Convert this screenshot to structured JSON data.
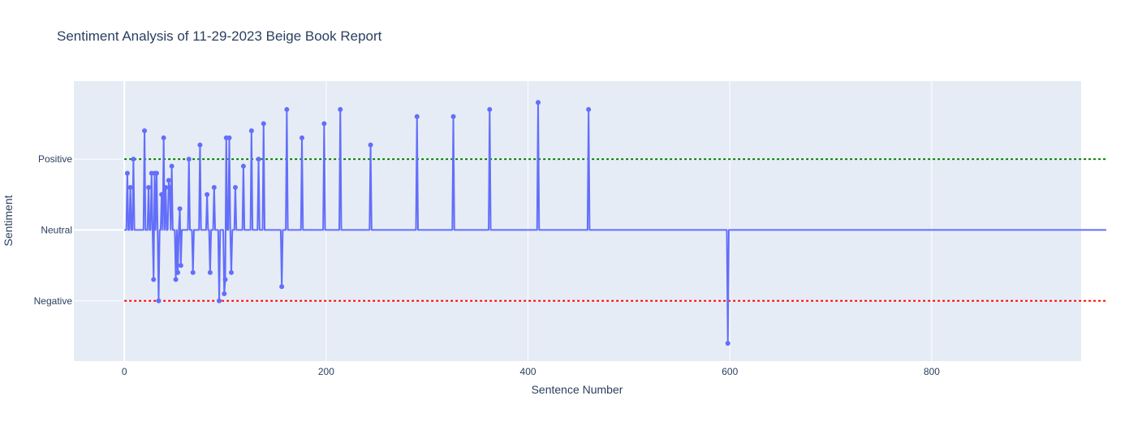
{
  "chart_data": {
    "type": "line",
    "title": "Sentiment Analysis of 11-29-2023 Beige Book Report",
    "xlabel": "Sentence Number",
    "ylabel": "Sentiment",
    "x_ticks": [
      0,
      200,
      400,
      600,
      800
    ],
    "y_tick_values": [
      -1,
      0,
      1
    ],
    "y_tick_labels": [
      "Negative",
      "Neutral",
      "Positive"
    ],
    "xlim": [
      -50,
      948
    ],
    "ylim": [
      -1.85,
      2.1
    ],
    "grid": true,
    "legend": "none",
    "colors": {
      "series": "#636efa",
      "plot_bg": "#e5ecf6",
      "grid": "#ffffff",
      "text": "#2a3f5f",
      "positive_line": "#008000",
      "negative_line": "#ff0000"
    },
    "reference_lines": [
      {
        "y": 1,
        "color": "#008000",
        "style": "dotted"
      },
      {
        "y": -1,
        "color": "#ff0000",
        "style": "dotted"
      }
    ],
    "series": [
      {
        "x_start": 0,
        "x_step": 1,
        "values": [
          0.0,
          0.0,
          0.0,
          0.8,
          0.0,
          0.0,
          0.6,
          0.0,
          0.0,
          1.0,
          0.0,
          0.0,
          0.0,
          0.0,
          0.0,
          0.0,
          0.0,
          0.0,
          0.0,
          0.0,
          1.4,
          0.0,
          0.0,
          0.0,
          0.6,
          0.0,
          0.0,
          0.8,
          0.0,
          -0.7,
          0.8,
          0.0,
          0.8,
          0.0,
          -1.0,
          0.0,
          0.0,
          0.5,
          0.0,
          1.3,
          0.0,
          0.6,
          0.0,
          0.0,
          0.7,
          0.6,
          0.0,
          0.9,
          0.0,
          0.0,
          0.0,
          -0.7,
          0.0,
          -0.6,
          0.0,
          0.3,
          -0.5,
          0.0,
          0.0,
          0.0,
          0.0,
          0.0,
          0.0,
          0.0,
          1.0,
          0.0,
          0.0,
          0.0,
          -0.6,
          0.0,
          0.0,
          0.0,
          0.0,
          0.0,
          0.0,
          1.2,
          0.0,
          0.0,
          0.0,
          0.0,
          0.0,
          0.0,
          0.5,
          0.0,
          0.0,
          -0.6,
          0.0,
          0.0,
          0.0,
          0.6,
          0.0,
          0.0,
          0.0,
          0.0,
          -1.0,
          0.0,
          0.0,
          0.0,
          0.0,
          -0.9,
          -0.7,
          1.3,
          0.0,
          0.0,
          1.3,
          0.0,
          -0.6,
          0.0,
          0.0,
          0.0,
          0.6,
          0.0,
          0.0,
          0.0,
          0.0,
          0.0,
          0.0,
          0.0,
          0.9,
          0.0,
          0.0,
          0.0,
          0.0,
          0.0,
          0.0,
          0.0,
          1.4,
          0.0,
          0.0,
          0.0,
          0.0,
          0.0,
          0.0,
          1.0,
          0.0,
          0.0,
          0.0,
          0.0,
          1.5,
          0.0,
          0.0,
          0.0,
          0.0,
          0.0,
          0.0,
          0.0,
          0.0,
          0.0,
          0.0,
          0.0,
          0.0,
          0.0,
          0.0,
          0.0,
          0.0,
          0.0,
          -0.8,
          0.0,
          0.0,
          0.0,
          0.0,
          1.7,
          0.0,
          0.0,
          0.0,
          0.0,
          0.0,
          0.0,
          0.0,
          0.0,
          0.0,
          0.0,
          0.0,
          0.0,
          0.0,
          0.0,
          1.3,
          0.0,
          0.0,
          0.0,
          0.0,
          0.0,
          0.0,
          0.0,
          0.0,
          0.0,
          0.0,
          0.0,
          0.0,
          0.0,
          0.0,
          0.0,
          0.0,
          0.0,
          0.0,
          0.0,
          0.0,
          0.0,
          1.5,
          0.0,
          0.0,
          0.0,
          0.0,
          0.0,
          0.0,
          0.0,
          0.0,
          0.0,
          0.0,
          0.0,
          0.0,
          0.0,
          0.0,
          0.0,
          1.7,
          0.0,
          0.0,
          0.0,
          0.0,
          0.0,
          0.0,
          0.0,
          0.0,
          0.0,
          0.0,
          0.0,
          0.0,
          0.0,
          0.0,
          0.0,
          0.0,
          0.0,
          0.0,
          0.0,
          0.0,
          0.0,
          0.0,
          0.0,
          0.0,
          0.0,
          0.0,
          0.0,
          0.0,
          0.0,
          1.2,
          0.0,
          0.0,
          0.0,
          0.0,
          0.0,
          0.0,
          0.0,
          0.0,
          0.0,
          0.0,
          0.0,
          0.0,
          0.0,
          0.0,
          0.0,
          0.0,
          0.0,
          0.0,
          0.0,
          0.0,
          0.0,
          0.0,
          0.0,
          0.0,
          0.0,
          0.0,
          0.0,
          0.0,
          0.0,
          0.0,
          0.0,
          0.0,
          0.0,
          0.0,
          0.0,
          0.0,
          0.0,
          0.0,
          0.0,
          0.0,
          0.0,
          0.0,
          0.0,
          0.0,
          0.0,
          1.6,
          0.0,
          0.0,
          0.0,
          0.0,
          0.0,
          0.0,
          0.0,
          0.0,
          0.0,
          0.0,
          0.0,
          0.0,
          0.0,
          0.0,
          0.0,
          0.0,
          0.0,
          0.0,
          0.0,
          0.0,
          0.0,
          0.0,
          0.0,
          0.0,
          0.0,
          0.0,
          0.0,
          0.0,
          0.0,
          0.0,
          0.0,
          0.0,
          0.0,
          0.0,
          0.0,
          1.6,
          0.0,
          0.0,
          0.0,
          0.0,
          0.0,
          0.0,
          0.0,
          0.0,
          0.0,
          0.0,
          0.0,
          0.0,
          0.0,
          0.0,
          0.0,
          0.0,
          0.0,
          0.0,
          0.0,
          0.0,
          0.0,
          0.0,
          0.0,
          0.0,
          0.0,
          0.0,
          0.0,
          0.0,
          0.0,
          0.0,
          0.0,
          0.0,
          0.0,
          0.0,
          0.0,
          1.7,
          0.0,
          0.0,
          0.0,
          0.0,
          0.0,
          0.0,
          0.0,
          0.0,
          0.0,
          0.0,
          0.0,
          0.0,
          0.0,
          0.0,
          0.0,
          0.0,
          0.0,
          0.0,
          0.0,
          0.0,
          0.0,
          0.0,
          0.0,
          0.0,
          0.0,
          0.0,
          0.0,
          0.0,
          0.0,
          0.0,
          0.0,
          0.0,
          0.0,
          0.0,
          0.0,
          0.0,
          0.0,
          0.0,
          0.0,
          0.0,
          0.0,
          0.0,
          0.0,
          0.0,
          0.0,
          0.0,
          0.0,
          1.8,
          0.0,
          0.0,
          0.0,
          0.0,
          0.0,
          0.0,
          0.0,
          0.0,
          0.0,
          0.0,
          0.0,
          0.0,
          0.0,
          0.0,
          0.0,
          0.0,
          0.0,
          0.0,
          0.0,
          0.0,
          0.0,
          0.0,
          0.0,
          0.0,
          0.0,
          0.0,
          0.0,
          0.0,
          0.0,
          0.0,
          0.0,
          0.0,
          0.0,
          0.0,
          0.0,
          0.0,
          0.0,
          0.0,
          0.0,
          0.0,
          0.0,
          0.0,
          0.0,
          0.0,
          0.0,
          0.0,
          0.0,
          0.0,
          0.0,
          1.7,
          0.0,
          0.0,
          0.0,
          0.0,
          0.0,
          0.0,
          0.0,
          0.0,
          0.0,
          0.0,
          0.0,
          0.0,
          0.0,
          0.0,
          0.0,
          0.0,
          0.0,
          0.0,
          0.0,
          0.0,
          0.0,
          0.0,
          0.0,
          0.0,
          0.0,
          0.0,
          0.0,
          0.0,
          0.0,
          0.0,
          0.0,
          0.0,
          0.0,
          0.0,
          0.0,
          0.0,
          0.0,
          0.0,
          0.0,
          0.0,
          0.0,
          0.0,
          0.0,
          0.0,
          0.0,
          0.0,
          0.0,
          0.0,
          0.0,
          0.0,
          0.0,
          0.0,
          0.0,
          0.0,
          0.0,
          0.0,
          0.0,
          0.0,
          0.0,
          0.0,
          0.0,
          0.0,
          0.0,
          0.0,
          0.0,
          0.0,
          0.0,
          0.0,
          0.0,
          0.0,
          0.0,
          0.0,
          0.0,
          0.0,
          0.0,
          0.0,
          0.0,
          0.0,
          0.0,
          0.0,
          0.0,
          0.0,
          0.0,
          0.0,
          0.0,
          0.0,
          0.0,
          0.0,
          0.0,
          0.0,
          0.0,
          0.0,
          0.0,
          0.0,
          0.0,
          0.0,
          0.0,
          0.0,
          0.0,
          0.0,
          0.0,
          0.0,
          0.0,
          0.0,
          0.0,
          0.0,
          0.0,
          0.0,
          0.0,
          0.0,
          0.0,
          0.0,
          0.0,
          0.0,
          0.0,
          0.0,
          0.0,
          0.0,
          0.0,
          0.0,
          0.0,
          0.0,
          0.0,
          0.0,
          0.0,
          0.0,
          0.0,
          0.0,
          0.0,
          0.0,
          0.0,
          0.0,
          0.0,
          0.0,
          0.0,
          0.0,
          0.0,
          -1.6,
          0.0,
          0.0,
          0.0,
          0.0,
          0.0,
          0.0,
          0.0,
          0.0,
          0.0,
          0.0,
          0.0,
          0.0,
          0.0,
          0.0,
          0.0,
          0.0,
          0.0,
          0.0,
          0.0,
          0.0,
          0.0,
          0.0,
          0.0,
          0.0,
          0.0,
          0.0,
          0.0,
          0.0,
          0.0,
          0.0,
          0.0,
          0.0,
          0.0,
          0.0,
          0.0,
          0.0,
          0.0,
          0.0,
          0.0,
          0.0,
          0.0,
          0.0,
          0.0,
          0.0,
          0.0,
          0.0,
          0.0,
          0.0,
          0.0,
          0.0,
          0.0,
          0.0,
          0.0,
          0.0,
          0.0,
          0.0,
          0.0,
          0.0,
          0.0,
          0.0,
          0.0,
          0.0,
          0.0,
          0.0,
          0.0,
          0.0,
          0.0,
          0.0,
          0.0,
          0.0,
          0.0,
          0.0,
          0.0,
          0.0,
          0.0,
          0.0,
          0.0,
          0.0,
          0.0,
          0.0,
          0.0,
          0.0,
          0.0,
          0.0,
          0.0,
          0.0,
          0.0,
          0.0,
          0.0,
          0.0,
          0.0,
          0.0,
          0.0,
          0.0,
          0.0,
          0.0,
          0.0,
          0.0,
          0.0,
          0.0,
          0.0,
          0.0,
          0.0,
          0.0,
          0.0,
          0.0,
          0.0,
          0.0,
          0.0,
          0.0,
          0.0,
          0.0,
          0.0,
          0.0,
          0.0,
          0.0,
          0.0,
          0.0,
          0.0,
          0.0,
          0.0,
          0.0,
          0.0,
          0.0,
          0.0,
          0.0,
          0.0,
          0.0,
          0.0,
          0.0,
          0.0,
          0.0,
          0.0,
          0.0,
          0.0,
          0.0,
          0.0,
          0.0,
          0.0,
          0.0,
          0.0,
          0.0,
          0.0,
          0.0,
          0.0,
          0.0,
          0.0,
          0.0,
          0.0,
          0.0,
          0.0,
          0.0,
          0.0,
          0.0,
          0.0,
          0.0,
          0.0,
          0.0,
          0.0,
          0.0,
          0.0,
          0.0,
          0.0,
          0.0,
          0.0,
          0.0,
          0.0,
          0.0,
          0.0,
          0.0,
          0.0,
          0.0,
          0.0,
          0.0,
          0.0,
          0.0,
          0.0,
          0.0,
          0.0,
          0.0,
          0.0,
          0.0,
          0.0,
          0.0,
          0.0,
          0.0,
          0.0,
          0.0,
          0.0,
          0.0,
          0.0,
          0.0,
          0.0,
          0.0,
          0.0,
          0.0,
          0.0,
          0.0,
          0.0,
          0.0,
          0.0,
          0.0,
          0.0,
          0.0,
          0.0,
          0.0,
          0.0,
          0.0,
          0.0,
          0.0,
          0.0,
          0.0,
          0.0,
          0.0,
          0.0,
          0.0,
          0.0,
          0.0,
          0.0,
          0.0,
          0.0,
          0.0,
          0.0,
          0.0,
          0.0,
          0.0,
          0.0,
          0.0,
          0.0,
          0.0,
          0.0,
          0.0,
          0.0,
          0.0,
          0.0,
          0.0,
          0.0,
          0.0,
          0.0,
          0.0,
          0.0,
          0.0,
          0.0,
          0.0,
          0.0,
          0.0,
          0.0,
          0.0,
          0.0,
          0.0,
          0.0,
          0.0,
          0.0,
          0.0,
          0.0,
          0.0,
          0.0,
          0.0,
          0.0,
          0.0,
          0.0,
          0.0,
          0.0,
          0.0,
          0.0,
          0.0,
          0.0,
          0.0,
          0.0,
          0.0,
          0.0,
          0.0,
          0.0,
          0.0,
          0.0,
          0.0,
          0.0,
          0.0,
          0.0,
          0.0,
          0.0,
          0.0,
          0.0,
          0.0,
          0.0,
          0.0,
          0.0,
          0.0,
          0.0,
          0.0,
          0.0,
          0.0,
          0.0,
          0.0,
          0.0,
          0.0,
          0.0,
          0.0,
          0.0,
          0.0,
          0.0,
          0.0,
          0.0,
          0.0,
          0.0,
          0.0,
          0.0,
          0.0,
          0.0,
          0.0,
          0.0,
          0.0,
          0.0,
          0.0,
          0.0,
          0.0,
          0.0,
          0.0,
          0.0,
          0.0,
          0.0,
          0.0,
          0.0,
          0.0,
          0.0,
          0.0,
          0.0,
          0.0,
          0.0,
          0.0,
          0.0,
          0.0,
          0.0,
          0.0,
          0.0,
          0.0,
          0.0,
          0.0,
          0.0,
          0.0,
          0.0,
          0.0,
          0.0,
          0.0,
          0.0,
          0.0,
          0.0,
          0.0,
          0.0,
          0.0,
          0.0,
          0.0,
          0.0,
          0.0,
          0.0,
          0.0,
          0.0,
          0.0,
          0.0,
          0.0,
          0.0,
          0.0,
          0.0,
          0.0,
          0.0,
          0.0,
          0.0,
          0.0,
          0.0,
          0.0,
          0.0,
          0.0,
          0.0,
          0.0,
          0.0
        ]
      }
    ]
  }
}
